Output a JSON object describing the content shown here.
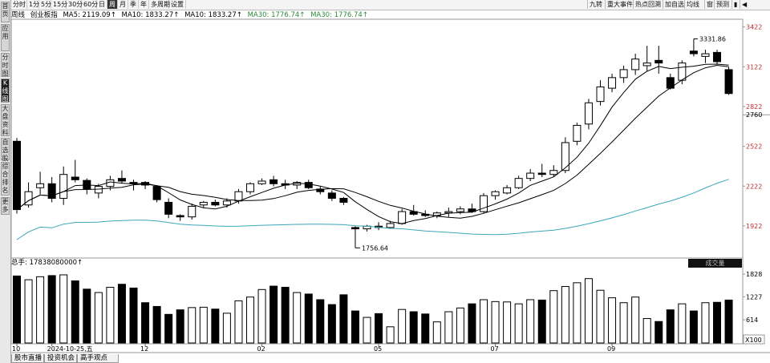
{
  "sidebar": {
    "items": [
      "首页",
      "应用",
      "分时图",
      "K线图",
      "大盘资料",
      "自选股",
      "综合排名",
      "更多"
    ]
  },
  "toolbar": {
    "periods": [
      "分时",
      "1分",
      "5分",
      "15分",
      "30分",
      "60分",
      "日",
      "周",
      "月",
      "季",
      "年",
      "多周期",
      "设置"
    ],
    "selected_period": "周",
    "right_buttons": [
      "九转",
      "重大事件",
      "热点回溯",
      "加自选",
      "均线",
      "窗",
      "预测"
    ]
  },
  "info": {
    "period": "周线",
    "name": "创业板指",
    "ma5": "MA5: 2119.09↑",
    "ma10a": "MA10: 1833.27↑",
    "ma10b": "MA10: 1833.27↑",
    "ma30a": "MA30: 1776.74↑",
    "ma30b": "MA30: 1776.74↑"
  },
  "annotations": {
    "high_label": "3331.86",
    "low_label": "1756.64"
  },
  "volume": {
    "total_label": "总手: 17838080000↑",
    "tag": "成交量",
    "unit": "X100"
  },
  "colors": {
    "up": "#000000",
    "down": "#000000",
    "ma5": "#000000",
    "ma10": "#000000",
    "ma30": "#3aa6b9",
    "price_axis": "#c03030",
    "ma5_text": "#000000",
    "ma10_text": "#000000",
    "ma30_text": "#2a8a3a"
  },
  "bottom_tabs": [
    "股市直播",
    "投资机会",
    "高手观点"
  ],
  "chart_data": {
    "type": "candlestick",
    "price_axis": {
      "ticks": [
        1922,
        2222,
        2522,
        2822,
        3122,
        3422
      ],
      "current_price_label": 2760,
      "ylim": [
        1686,
        3474
      ]
    },
    "volume_axis": {
      "ticks": [
        614,
        1227,
        1828
      ],
      "ylim": [
        0,
        1980
      ],
      "unit": "X100"
    },
    "x_labels": [
      {
        "text": "10",
        "index": 0
      },
      {
        "text": "2024-10-25,五",
        "index": 3
      },
      {
        "text": "12",
        "index": 11
      },
      {
        "text": "02",
        "index": 21
      },
      {
        "text": "05",
        "index": 31
      },
      {
        "text": "07",
        "index": 41
      },
      {
        "text": "09",
        "index": 51
      }
    ],
    "candles": [
      {
        "o": 2560,
        "h": 2585,
        "l": 2015,
        "c": 2045,
        "v": 1780
      },
      {
        "o": 2080,
        "h": 2250,
        "l": 2060,
        "c": 2180,
        "v": 1680
      },
      {
        "o": 2210,
        "h": 2330,
        "l": 2160,
        "c": 2240,
        "v": 1760
      },
      {
        "o": 2240,
        "h": 2290,
        "l": 2100,
        "c": 2130,
        "v": 1790
      },
      {
        "o": 2130,
        "h": 2370,
        "l": 2080,
        "c": 2310,
        "v": 1810
      },
      {
        "o": 2290,
        "h": 2420,
        "l": 2250,
        "c": 2270,
        "v": 1650
      },
      {
        "o": 2265,
        "h": 2280,
        "l": 2160,
        "c": 2200,
        "v": 1430
      },
      {
        "o": 2170,
        "h": 2240,
        "l": 2130,
        "c": 2220,
        "v": 1340
      },
      {
        "o": 2220,
        "h": 2300,
        "l": 2190,
        "c": 2270,
        "v": 1480
      },
      {
        "o": 2280,
        "h": 2340,
        "l": 2240,
        "c": 2260,
        "v": 1560
      },
      {
        "o": 2250,
        "h": 2270,
        "l": 2190,
        "c": 2240,
        "v": 1460
      },
      {
        "o": 2250,
        "h": 2260,
        "l": 2200,
        "c": 2230,
        "v": 1070
      },
      {
        "o": 2220,
        "h": 2230,
        "l": 2100,
        "c": 2120,
        "v": 970
      },
      {
        "o": 2100,
        "h": 2130,
        "l": 1980,
        "c": 2010,
        "v": 760
      },
      {
        "o": 2000,
        "h": 2010,
        "l": 1960,
        "c": 1990,
        "v": 880
      },
      {
        "o": 1990,
        "h": 2090,
        "l": 1970,
        "c": 2070,
        "v": 940
      },
      {
        "o": 2080,
        "h": 2110,
        "l": 2060,
        "c": 2100,
        "v": 950
      },
      {
        "o": 2100,
        "h": 2120,
        "l": 2070,
        "c": 2080,
        "v": 900
      },
      {
        "o": 2080,
        "h": 2130,
        "l": 2060,
        "c": 2110,
        "v": 790
      },
      {
        "o": 2110,
        "h": 2200,
        "l": 2090,
        "c": 2180,
        "v": 1120
      },
      {
        "o": 2180,
        "h": 2250,
        "l": 2160,
        "c": 2240,
        "v": 1220
      },
      {
        "o": 2240,
        "h": 2280,
        "l": 2230,
        "c": 2260,
        "v": 1420
      },
      {
        "o": 2270,
        "h": 2300,
        "l": 2220,
        "c": 2240,
        "v": 1510
      },
      {
        "o": 2240,
        "h": 2270,
        "l": 2200,
        "c": 2230,
        "v": 1480
      },
      {
        "o": 2230,
        "h": 2260,
        "l": 2200,
        "c": 2250,
        "v": 1340
      },
      {
        "o": 2250,
        "h": 2270,
        "l": 2200,
        "c": 2210,
        "v": 1300
      },
      {
        "o": 2200,
        "h": 2220,
        "l": 2160,
        "c": 2180,
        "v": 1150
      },
      {
        "o": 2170,
        "h": 2190,
        "l": 2110,
        "c": 2130,
        "v": 1020
      },
      {
        "o": 2130,
        "h": 2140,
        "l": 2080,
        "c": 2100,
        "v": 1280
      },
      {
        "o": 1910,
        "h": 1920,
        "l": 1756.64,
        "c": 1900,
        "v": 850
      },
      {
        "o": 1900,
        "h": 1930,
        "l": 1880,
        "c": 1920,
        "v": 680
      },
      {
        "o": 1920,
        "h": 1950,
        "l": 1890,
        "c": 1910,
        "v": 780
      },
      {
        "o": 1910,
        "h": 1960,
        "l": 1900,
        "c": 1940,
        "v": 430
      },
      {
        "o": 1940,
        "h": 2050,
        "l": 1930,
        "c": 2030,
        "v": 890
      },
      {
        "o": 2030,
        "h": 2080,
        "l": 2000,
        "c": 2010,
        "v": 830
      },
      {
        "o": 2010,
        "h": 2040,
        "l": 1990,
        "c": 2000,
        "v": 770
      },
      {
        "o": 2000,
        "h": 2030,
        "l": 1980,
        "c": 2020,
        "v": 560
      },
      {
        "o": 2020,
        "h": 2060,
        "l": 1990,
        "c": 2030,
        "v": 830
      },
      {
        "o": 2030,
        "h": 2070,
        "l": 2010,
        "c": 2050,
        "v": 930
      },
      {
        "o": 2050,
        "h": 2090,
        "l": 2020,
        "c": 2030,
        "v": 1040
      },
      {
        "o": 2030,
        "h": 2170,
        "l": 2020,
        "c": 2150,
        "v": 1150
      },
      {
        "o": 2150,
        "h": 2190,
        "l": 2120,
        "c": 2180,
        "v": 1100
      },
      {
        "o": 2170,
        "h": 2230,
        "l": 2160,
        "c": 2210,
        "v": 1090
      },
      {
        "o": 2210,
        "h": 2300,
        "l": 2200,
        "c": 2280,
        "v": 1040
      },
      {
        "o": 2280,
        "h": 2350,
        "l": 2260,
        "c": 2320,
        "v": 1150
      },
      {
        "o": 2320,
        "h": 2390,
        "l": 2290,
        "c": 2310,
        "v": 1140
      },
      {
        "o": 2310,
        "h": 2380,
        "l": 2290,
        "c": 2340,
        "v": 1390
      },
      {
        "o": 2340,
        "h": 2590,
        "l": 2320,
        "c": 2550,
        "v": 1500
      },
      {
        "o": 2560,
        "h": 2700,
        "l": 2530,
        "c": 2680,
        "v": 1600
      },
      {
        "o": 2690,
        "h": 2880,
        "l": 2650,
        "c": 2850,
        "v": 1710
      },
      {
        "o": 2860,
        "h": 3020,
        "l": 2830,
        "c": 2970,
        "v": 1400
      },
      {
        "o": 2960,
        "h": 3070,
        "l": 2930,
        "c": 3040,
        "v": 1200
      },
      {
        "o": 3040,
        "h": 3130,
        "l": 3000,
        "c": 3100,
        "v": 1070
      },
      {
        "o": 3100,
        "h": 3220,
        "l": 3060,
        "c": 3180,
        "v": 1220
      },
      {
        "o": 3130,
        "h": 3280,
        "l": 3090,
        "c": 3150,
        "v": 650
      },
      {
        "o": 3170,
        "h": 3280,
        "l": 3070,
        "c": 3150,
        "v": 570
      },
      {
        "o": 3040,
        "h": 3070,
        "l": 2950,
        "c": 2960,
        "v": 880
      },
      {
        "o": 3020,
        "h": 3170,
        "l": 2990,
        "c": 3150,
        "v": 1040
      },
      {
        "o": 3240,
        "h": 3331.86,
        "l": 3200,
        "c": 3220,
        "v": 850
      },
      {
        "o": 3200,
        "h": 3250,
        "l": 3150,
        "c": 3220,
        "v": 1070
      },
      {
        "o": 3230,
        "h": 3250,
        "l": 3140,
        "c": 3160,
        "v": 1080
      },
      {
        "o": 3100,
        "h": 3120,
        "l": 2910,
        "c": 2920,
        "v": 1140
      }
    ]
  }
}
